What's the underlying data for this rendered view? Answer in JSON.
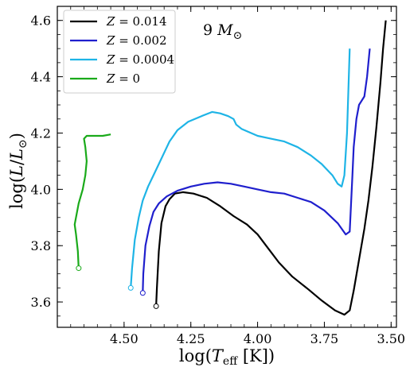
{
  "chart_data": {
    "type": "line",
    "title": "",
    "annotation": {
      "base": "9",
      "symbol": "M",
      "subscript": "⊙"
    },
    "xlabel": {
      "prefix": "log(",
      "var": "T",
      "sub": "eff",
      "suffix": " [K])"
    },
    "ylabel": {
      "prefix": "log(",
      "var": "L",
      "sep": "/",
      "var2": "L",
      "sub": "⊙",
      "suffix": ")"
    },
    "xlim": [
      4.75,
      3.48
    ],
    "ylim": [
      3.51,
      4.65
    ],
    "x_inverted": true,
    "xticks": [
      4.5,
      4.25,
      4.0,
      3.75,
      3.5
    ],
    "xtick_labels": [
      "4.50",
      "4.25",
      "4.00",
      "3.75",
      "3.50"
    ],
    "yticks": [
      3.6,
      3.8,
      4.0,
      4.2,
      4.4,
      4.6
    ],
    "ytick_labels": [
      "3.6",
      "3.8",
      "4.0",
      "4.2",
      "4.4",
      "4.6"
    ],
    "grid": false,
    "legend_position": "top-left",
    "series": [
      {
        "name": "Z = 0.014",
        "label_text": "= 0.014",
        "color": "#000000",
        "points": [
          [
            4.38,
            3.585
          ],
          [
            4.377,
            3.65
          ],
          [
            4.37,
            3.78
          ],
          [
            4.36,
            3.88
          ],
          [
            4.345,
            3.94
          ],
          [
            4.33,
            3.965
          ],
          [
            4.31,
            3.985
          ],
          [
            4.28,
            3.99
          ],
          [
            4.24,
            3.985
          ],
          [
            4.19,
            3.97
          ],
          [
            4.14,
            3.94
          ],
          [
            4.09,
            3.905
          ],
          [
            4.04,
            3.875
          ],
          [
            4.0,
            3.84
          ],
          [
            3.96,
            3.79
          ],
          [
            3.92,
            3.74
          ],
          [
            3.87,
            3.69
          ],
          [
            3.81,
            3.645
          ],
          [
            3.76,
            3.605
          ],
          [
            3.71,
            3.57
          ],
          [
            3.675,
            3.555
          ],
          [
            3.655,
            3.57
          ],
          [
            3.64,
            3.64
          ],
          [
            3.62,
            3.75
          ],
          [
            3.6,
            3.86
          ],
          [
            3.585,
            3.96
          ],
          [
            3.57,
            4.08
          ],
          [
            3.555,
            4.22
          ],
          [
            3.54,
            4.38
          ],
          [
            3.53,
            4.5
          ],
          [
            3.52,
            4.6
          ]
        ]
      },
      {
        "name": "Z = 0.002",
        "label_text": "= 0.002",
        "color": "#1f1fcd",
        "points": [
          [
            4.43,
            3.632
          ],
          [
            4.428,
            3.7
          ],
          [
            4.42,
            3.8
          ],
          [
            4.405,
            3.87
          ],
          [
            4.39,
            3.92
          ],
          [
            4.37,
            3.95
          ],
          [
            4.34,
            3.975
          ],
          [
            4.3,
            3.995
          ],
          [
            4.25,
            4.01
          ],
          [
            4.2,
            4.02
          ],
          [
            4.15,
            4.025
          ],
          [
            4.1,
            4.02
          ],
          [
            4.05,
            4.01
          ],
          [
            4.0,
            4.0
          ],
          [
            3.95,
            3.99
          ],
          [
            3.9,
            3.985
          ],
          [
            3.85,
            3.97
          ],
          [
            3.8,
            3.955
          ],
          [
            3.75,
            3.925
          ],
          [
            3.7,
            3.88
          ],
          [
            3.67,
            3.84
          ],
          [
            3.655,
            3.85
          ],
          [
            3.65,
            3.95
          ],
          [
            3.645,
            4.05
          ],
          [
            3.64,
            4.15
          ],
          [
            3.63,
            4.25
          ],
          [
            3.62,
            4.3
          ],
          [
            3.6,
            4.33
          ],
          [
            3.59,
            4.4
          ],
          [
            3.58,
            4.5
          ]
        ]
      },
      {
        "name": "Z = 0.0004",
        "label_text": "= 0.0004",
        "color": "#1eb4e6",
        "points": [
          [
            4.475,
            3.65
          ],
          [
            4.47,
            3.72
          ],
          [
            4.46,
            3.82
          ],
          [
            4.445,
            3.9
          ],
          [
            4.43,
            3.96
          ],
          [
            4.41,
            4.01
          ],
          [
            4.39,
            4.05
          ],
          [
            4.37,
            4.09
          ],
          [
            4.35,
            4.13
          ],
          [
            4.33,
            4.17
          ],
          [
            4.3,
            4.21
          ],
          [
            4.26,
            4.24
          ],
          [
            4.21,
            4.26
          ],
          [
            4.17,
            4.275
          ],
          [
            4.14,
            4.27
          ],
          [
            4.11,
            4.26
          ],
          [
            4.09,
            4.25
          ],
          [
            4.08,
            4.23
          ],
          [
            4.06,
            4.215
          ],
          [
            4.0,
            4.19
          ],
          [
            3.95,
            4.18
          ],
          [
            3.9,
            4.17
          ],
          [
            3.85,
            4.15
          ],
          [
            3.8,
            4.12
          ],
          [
            3.76,
            4.09
          ],
          [
            3.72,
            4.05
          ],
          [
            3.7,
            4.02
          ],
          [
            3.685,
            4.01
          ],
          [
            3.675,
            4.05
          ],
          [
            3.665,
            4.2
          ],
          [
            3.66,
            4.35
          ],
          [
            3.655,
            4.5
          ]
        ]
      },
      {
        "name": "Z = 0",
        "label_text": "= 0",
        "color": "#1aaa1a",
        "points": [
          [
            4.67,
            3.72
          ],
          [
            4.673,
            3.78
          ],
          [
            4.68,
            3.84
          ],
          [
            4.685,
            3.875
          ],
          [
            4.67,
            3.95
          ],
          [
            4.655,
            4.0
          ],
          [
            4.645,
            4.05
          ],
          [
            4.64,
            4.1
          ],
          [
            4.645,
            4.15
          ],
          [
            4.65,
            4.18
          ],
          [
            4.64,
            4.19
          ],
          [
            4.62,
            4.19
          ],
          [
            4.6,
            4.19
          ],
          [
            4.58,
            4.19
          ],
          [
            4.55,
            4.195
          ]
        ]
      }
    ]
  }
}
